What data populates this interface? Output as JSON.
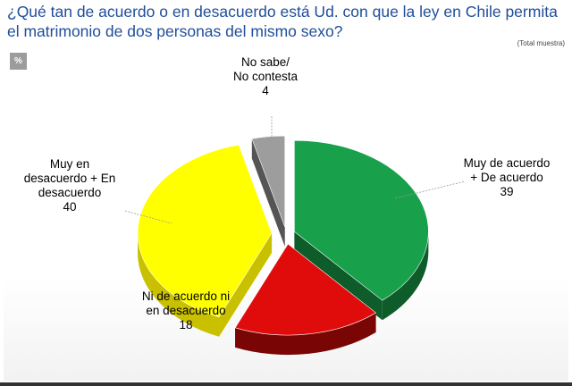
{
  "header": {
    "title": "¿Qué tan de acuerdo o en desacuerdo está Ud. con que la ley en Chile permita el matrimonio de dos personas del mismo sexo?",
    "sample_note": "(Total muestra)",
    "unit_badge": "%"
  },
  "chart_data": {
    "type": "pie",
    "title": "¿Qué tan de acuerdo o en desacuerdo está Ud. con que la ley en Chile permita el matrimonio de dos personas del mismo sexo?",
    "slices": [
      {
        "label_lines": [
          "Muy de acuerdo",
          "+ De acuerdo"
        ],
        "value": 39,
        "color": "#19a04b",
        "side_color": "#0d5c2a"
      },
      {
        "label_lines": [
          "Ni de acuerdo ni",
          "en desacuerdo"
        ],
        "value": 18,
        "color": "#e00c0c",
        "side_color": "#7a0505"
      },
      {
        "label_lines": [
          "Muy en",
          "desacuerdo + En",
          "desacuerdo"
        ],
        "value": 40,
        "color": "#ffff00",
        "side_color": "#c9c000"
      },
      {
        "label_lines": [
          "No sabe/",
          "No contesta"
        ],
        "value": 4,
        "color": "#9d9d9d",
        "side_color": "#555555"
      }
    ]
  }
}
